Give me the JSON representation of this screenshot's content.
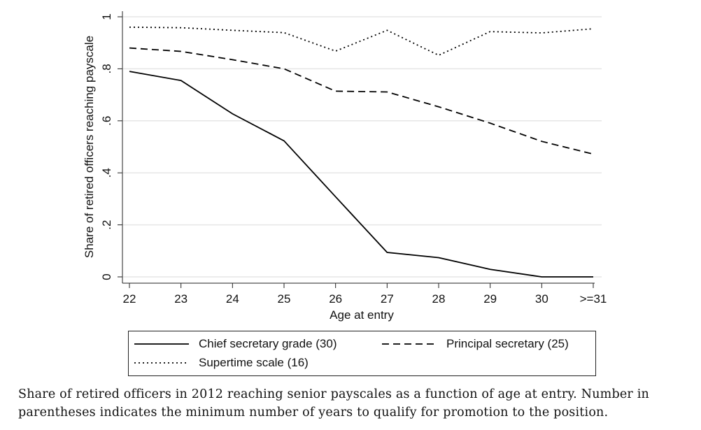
{
  "chart_data": {
    "type": "line",
    "title": "",
    "xlabel": "Age at entry",
    "ylabel": "Share of retired officers reaching payscale",
    "categories": [
      "22",
      "23",
      "24",
      "25",
      "26",
      "27",
      "28",
      "29",
      "30",
      ">=31"
    ],
    "ylim": [
      0,
      1
    ],
    "yticks": [
      "0",
      ".2",
      ".4",
      ".6",
      ".8",
      "1"
    ],
    "grid": true,
    "legend_position": "bottom",
    "series": [
      {
        "name": "Chief secretary grade (30)",
        "style": "solid",
        "values": [
          0.79,
          0.755,
          0.627,
          0.523,
          0.308,
          0.094,
          0.074,
          0.029,
          0.0,
          0.0
        ]
      },
      {
        "name": "Principal secretary (25)",
        "style": "dashed",
        "values": [
          0.88,
          0.867,
          0.835,
          0.8,
          0.714,
          0.711,
          0.654,
          0.591,
          0.521,
          0.472
        ]
      },
      {
        "name": "Supertime scale (16)",
        "style": "dotted",
        "values": [
          0.96,
          0.958,
          0.948,
          0.939,
          0.868,
          0.948,
          0.852,
          0.943,
          0.938,
          0.954
        ]
      }
    ]
  },
  "caption": {
    "line1": "Share of retired officers in 2012 reaching senior payscales as a function of age at entry.  Number in",
    "line2": "parentheses indicates the minimum number of years to qualify for promotion to the position."
  }
}
